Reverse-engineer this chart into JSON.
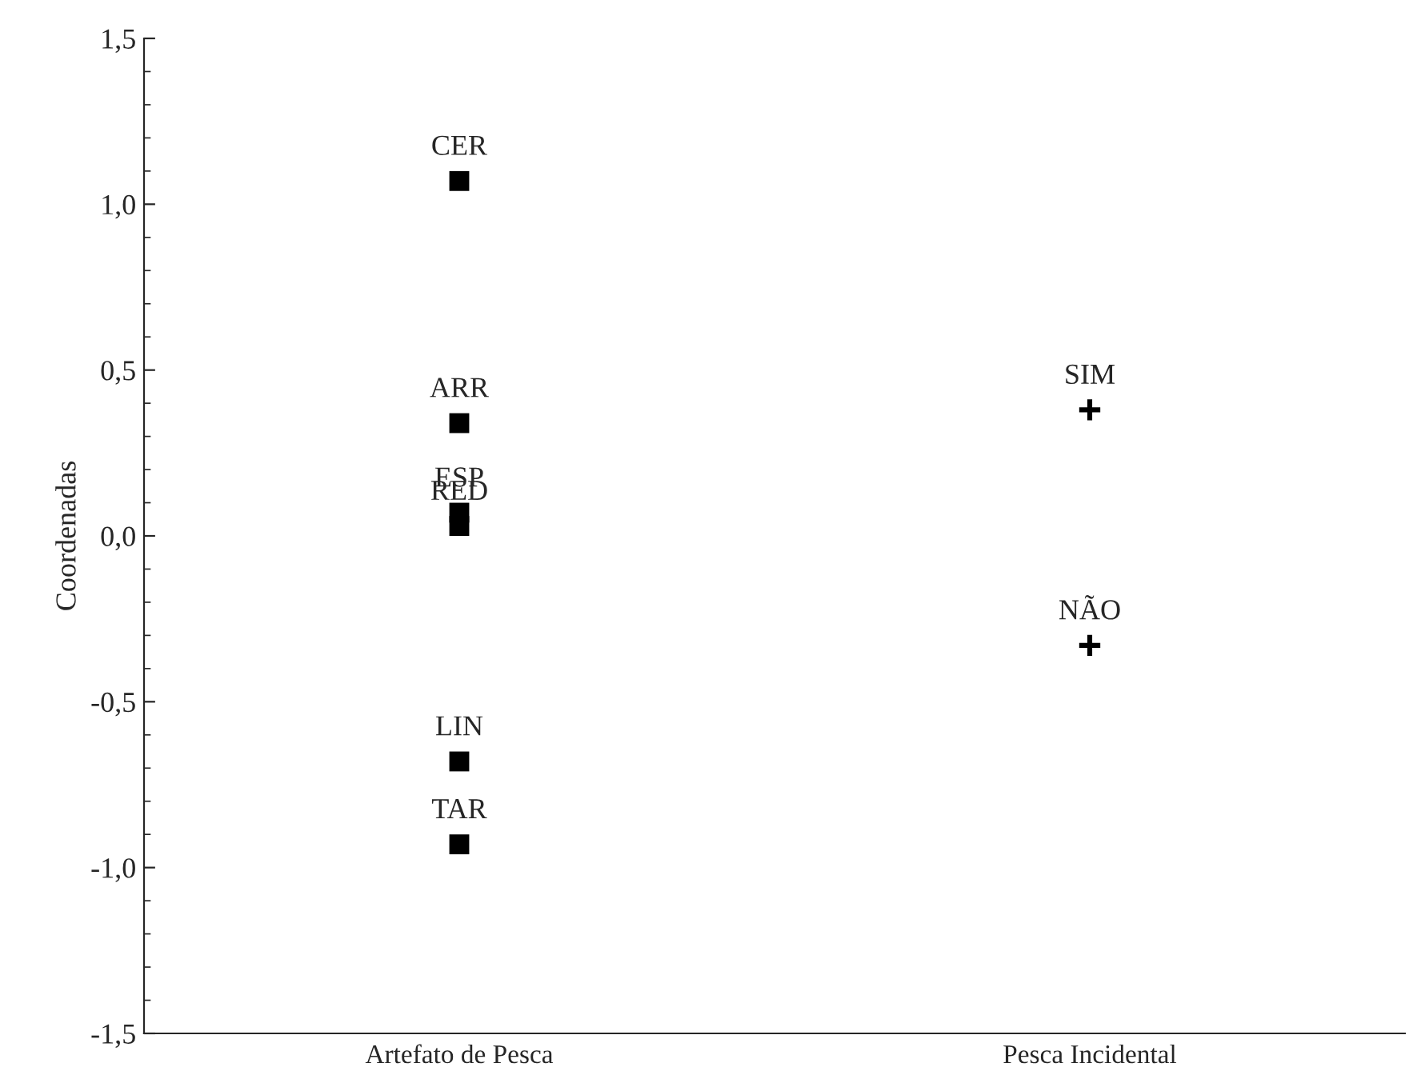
{
  "chart_data": {
    "type": "scatter",
    "ylabel": "Coordenadas",
    "categories": [
      "Artefato de Pesca",
      "Pesca Incidental"
    ],
    "series": [
      {
        "color": "#000000",
        "marker": "square",
        "x": [
          "Artefato de Pesca",
          "Artefato de Pesca",
          "Artefato de Pesca",
          "Artefato de Pesca",
          "Artefato de Pesca",
          "Artefato de Pesca"
        ],
        "values": [
          1.07,
          0.34,
          0.07,
          0.03,
          -0.68,
          -0.93
        ]
      },
      {
        "color": "#000000",
        "marker": "cross",
        "x": [
          "Pesca Incidental",
          "Pesca Incidental"
        ],
        "values": [
          0.38,
          -0.33
        ]
      }
    ],
    "annotations": [
      {
        "text": "CER",
        "x": "Artefato de Pesca",
        "y": 1.07
      },
      {
        "text": "ARR",
        "x": "Artefato de Pesca",
        "y": 0.34
      },
      {
        "text": "ESP",
        "x": "Artefato de Pesca",
        "y": 0.07
      },
      {
        "text": "RED",
        "x": "Artefato de Pesca",
        "y": 0.03
      },
      {
        "text": "LIN",
        "x": "Artefato de Pesca",
        "y": -0.68
      },
      {
        "text": "TAR",
        "x": "Artefato de Pesca",
        "y": -0.93
      },
      {
        "text": "SIM",
        "x": "Pesca Incidental",
        "y": 0.38
      },
      {
        "text": "NÃO",
        "x": "Pesca Incidental",
        "y": -0.33
      }
    ],
    "ylim": [
      -1.5,
      1.5
    ],
    "yticks": [
      {
        "value": -1.5,
        "label": "-1,5"
      },
      {
        "value": -1.0,
        "label": "-1,0"
      },
      {
        "value": -0.5,
        "label": "-0,5"
      },
      {
        "value": 0.0,
        "label": "0,0"
      },
      {
        "value": 0.5,
        "label": "0,5"
      },
      {
        "value": 1.0,
        "label": "1,0"
      },
      {
        "value": 1.5,
        "label": "1,5"
      }
    ],
    "grid": false,
    "legend": false
  }
}
